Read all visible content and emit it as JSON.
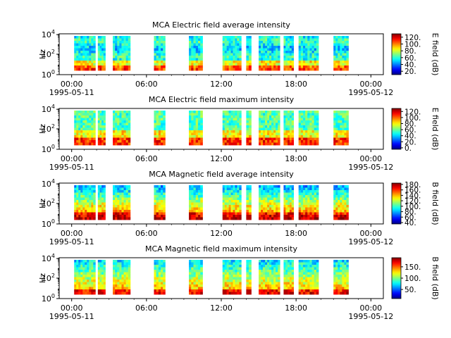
{
  "chart_data": {
    "type": "heatmap",
    "x_range": [
      "1995-05-10 23:00",
      "1995-05-12 01:00"
    ],
    "x_ticks": [
      {
        "hour": 0,
        "time": "00:00",
        "date": "1995-05-11"
      },
      {
        "hour": 6,
        "time": "06:00",
        "date": ""
      },
      {
        "hour": 12,
        "time": "12:00",
        "date": ""
      },
      {
        "hour": 18,
        "time": "18:00",
        "date": ""
      },
      {
        "hour": 24,
        "time": "00:00",
        "date": "1995-05-12"
      }
    ],
    "data_intervals_hours": [
      [
        0.2,
        1.9
      ],
      [
        2.1,
        2.7
      ],
      [
        3.3,
        4.7
      ],
      [
        6.6,
        7.5
      ],
      [
        9.4,
        10.5
      ],
      [
        12.1,
        13.6
      ],
      [
        14.0,
        14.4
      ],
      [
        15.0,
        16.7
      ],
      [
        17.0,
        17.8
      ],
      [
        18.2,
        19.8
      ],
      [
        21.0,
        22.2
      ]
    ],
    "panels": [
      {
        "title": "MCA  Electric field average intensity",
        "ylabel": "Hz",
        "y_ticks": [
          "10",
          "10",
          "10"
        ],
        "y_tick_exponents": [
          "0",
          "2",
          "4"
        ],
        "colorbar_label": "E field (dB)",
        "colorbar_ticks": [
          "20.",
          "40.",
          "60.",
          "80.",
          "100.",
          "120."
        ],
        "colorbar_range": [
          10,
          130
        ]
      },
      {
        "title": "MCA  Electric field maximum intensity",
        "ylabel": "Hz",
        "y_ticks": [
          "10",
          "10",
          "10"
        ],
        "y_tick_exponents": [
          "0",
          "2",
          "4"
        ],
        "colorbar_label": "E field (dB)",
        "colorbar_ticks": [
          "0.",
          "20.",
          "40.",
          "60.",
          "80.",
          "100.",
          "120."
        ],
        "colorbar_range": [
          -5,
          130
        ]
      },
      {
        "title": "MCA  Magnetic field average intensity",
        "ylabel": "Hz",
        "y_ticks": [
          "10",
          "10",
          "10"
        ],
        "y_tick_exponents": [
          "0",
          "2",
          "4"
        ],
        "colorbar_label": "B field (dB)",
        "colorbar_ticks": [
          "40.",
          "60.",
          "80.",
          "100.",
          "120.",
          "140.",
          "160.",
          "180."
        ],
        "colorbar_range": [
          35,
          185
        ]
      },
      {
        "title": "MCA  Magnetic field maximum intensity",
        "ylabel": "Hz",
        "y_ticks": [
          "10",
          "10",
          "10"
        ],
        "y_tick_exponents": [
          "0",
          "2",
          "4"
        ],
        "colorbar_label": "B field (dB)",
        "colorbar_ticks": [
          "50.",
          "100.",
          "150."
        ],
        "colorbar_range": [
          10,
          190
        ]
      }
    ]
  }
}
